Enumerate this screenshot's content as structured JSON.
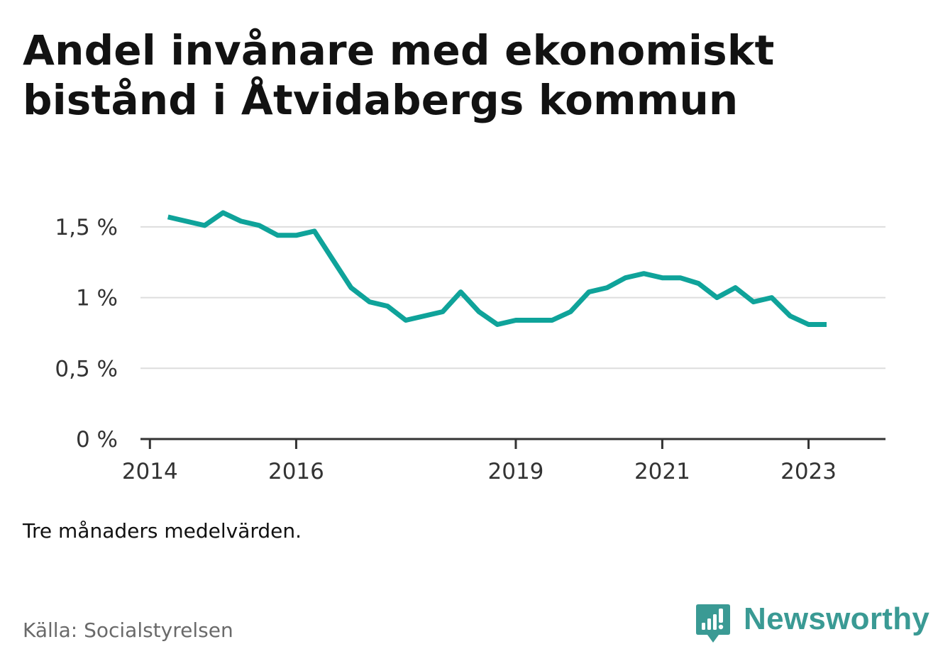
{
  "title": "Andel invånare med ekonomiskt bistånd i Åtvidabergs kommun",
  "note": "Tre månaders medelvärden.",
  "source": "Källa: Socialstyrelsen",
  "brand": {
    "name": "Newsworthy",
    "icon": "newsworthy-logo-icon",
    "color": "#3a9a94"
  },
  "colors": {
    "line": "#0fa39a",
    "grid": "#dddddd",
    "axis": "#333333"
  },
  "chart_data": {
    "type": "line",
    "title": "Andel invånare med ekonomiskt bistånd i Åtvidabergs kommun",
    "xlabel": "",
    "ylabel": "",
    "ylim": [
      0,
      1.7
    ],
    "xlim": [
      "2013-11-15",
      "2024-01-20"
    ],
    "grid": true,
    "y_ticks": [
      {
        "value": 0,
        "label": "0 %"
      },
      {
        "value": 0.5,
        "label": "0,5 %"
      },
      {
        "value": 1,
        "label": "1 %"
      },
      {
        "value": 1.5,
        "label": "1,5 %"
      }
    ],
    "x_ticks": [
      {
        "date": "2014-01-01",
        "label": "2014"
      },
      {
        "date": "2016-01-01",
        "label": "2016"
      },
      {
        "date": "2019-01-01",
        "label": "2019"
      },
      {
        "date": "2021-01-01",
        "label": "2021"
      },
      {
        "date": "2023-01-01",
        "label": "2023"
      }
    ],
    "series": [
      {
        "x": [
          "2014-04-01",
          "2014-07-01",
          "2014-10-01",
          "2015-01-01",
          "2015-04-01",
          "2015-07-01",
          "2015-10-01",
          "2016-01-01",
          "2016-04-01",
          "2016-07-01",
          "2016-10-01",
          "2017-01-01",
          "2017-04-01",
          "2017-07-01",
          "2017-10-01",
          "2018-01-01",
          "2018-04-01",
          "2018-07-01",
          "2018-10-01",
          "2019-01-01",
          "2019-04-01",
          "2019-07-01",
          "2019-10-01",
          "2020-01-01",
          "2020-04-01",
          "2020-07-01",
          "2020-10-01",
          "2021-01-01",
          "2021-04-01",
          "2021-07-01",
          "2021-10-01",
          "2022-01-01",
          "2022-04-01",
          "2022-07-01",
          "2022-10-01",
          "2023-01-01",
          "2023-04-01"
        ],
        "values": [
          1.57,
          1.54,
          1.51,
          1.6,
          1.54,
          1.51,
          1.44,
          1.44,
          1.47,
          1.27,
          1.07,
          0.97,
          0.94,
          0.84,
          0.87,
          0.9,
          1.04,
          0.9,
          0.81,
          0.84,
          0.84,
          0.84,
          0.9,
          1.04,
          1.07,
          1.14,
          1.17,
          1.14,
          1.14,
          1.1,
          1.0,
          1.07,
          0.97,
          1.0,
          0.87,
          0.81,
          0.81
        ]
      }
    ]
  }
}
